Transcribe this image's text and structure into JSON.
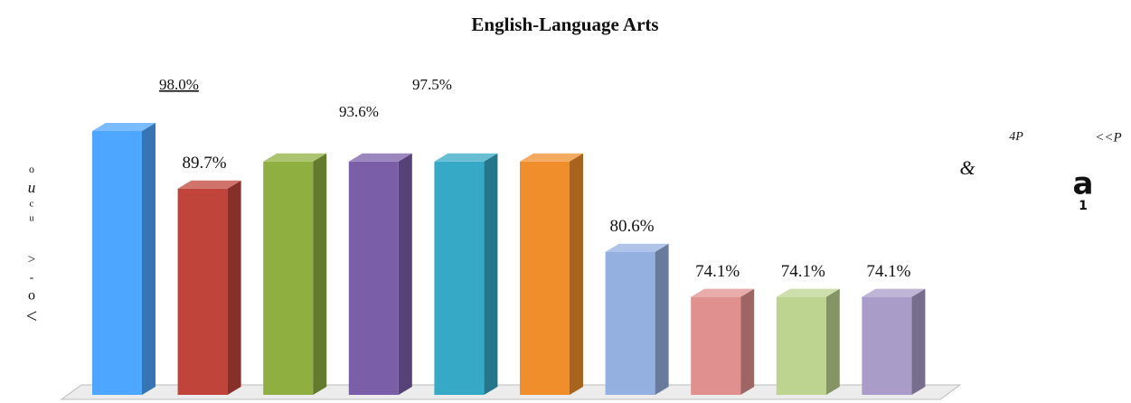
{
  "chart_data": {
    "type": "bar3d",
    "title": "English-Language Arts",
    "categories": [
      null,
      null,
      null,
      null,
      null,
      null,
      null,
      null,
      null,
      null
    ],
    "values": [
      98.0,
      89.7,
      93.6,
      93.6,
      93.6,
      93.6,
      80.6,
      74.1,
      74.1,
      74.1
    ],
    "value_labels": [
      "98.0%",
      "89.7%",
      "93.6%",
      null,
      null,
      null,
      "80.6%",
      "74.1%",
      "74.1%",
      "74.1%"
    ],
    "colors": [
      "#4da6ff",
      "#c0443a",
      "#8fb040",
      "#7b5ea8",
      "#35a9c6",
      "#f08e2b",
      "#94b0e0",
      "#e0908e",
      "#bcd490",
      "#aa9cc8"
    ],
    "ylim": [
      60,
      100
    ],
    "annotations": [
      "97.5%",
      "o",
      "u",
      "c",
      "u",
      ">",
      "-",
      "o",
      "<",
      "4P",
      "<<P",
      "&",
      "a",
      "1"
    ]
  }
}
